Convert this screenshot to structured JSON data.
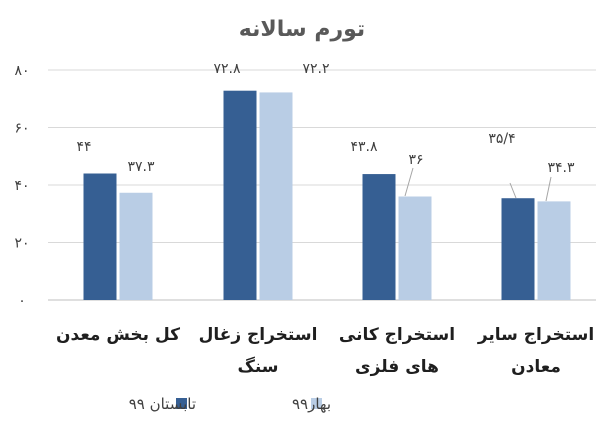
{
  "chart_data": {
    "type": "bar",
    "title": "تورم سالانه",
    "categories": [
      [
        "کل بخش معدن"
      ],
      [
        "استخراج زغال",
        "سنگ"
      ],
      [
        "استخراج کانی",
        "های فلزی"
      ],
      [
        "استخراج سایر",
        "معادن"
      ]
    ],
    "series": [
      {
        "name": "تابستان ۹۹",
        "color": "#365f93",
        "values": [
          44,
          72.8,
          43.8,
          35.4
        ],
        "labels": [
          "۴۴",
          "۷۲.۸",
          "۴۳.۸",
          "۳۵/۴"
        ]
      },
      {
        "name": "بهار۹۹",
        "color": "#b9cde5",
        "values": [
          37.3,
          72.2,
          36,
          34.3
        ],
        "labels": [
          "۳۷.۳",
          "۷۲.۲",
          "۳۶",
          "۳۴.۳"
        ]
      }
    ],
    "yticks": [
      0,
      20,
      40,
      60,
      80
    ],
    "ytick_labels": [
      "۰",
      "۲۰",
      "۴۰",
      "۶۰",
      "۸۰"
    ],
    "ylim": [
      0,
      80
    ],
    "grid": true,
    "legend": "bottom",
    "xlabel": "",
    "ylabel": ""
  }
}
